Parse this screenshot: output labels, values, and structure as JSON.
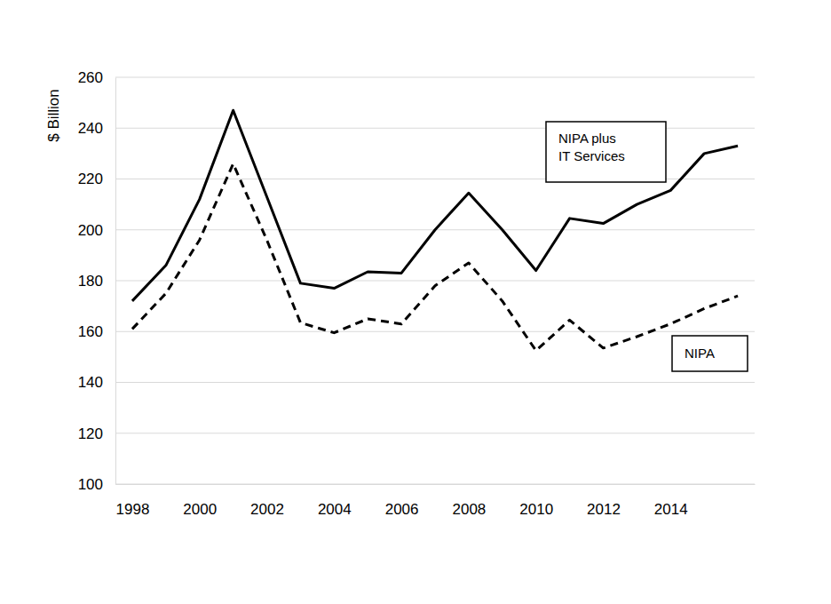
{
  "chart_data": {
    "type": "line",
    "y_label": "$ Billion",
    "x": [
      1998,
      1999,
      2000,
      2001,
      2002,
      2003,
      2004,
      2005,
      2006,
      2007,
      2008,
      2009,
      2010,
      2011,
      2012,
      2013,
      2014,
      2015,
      2016
    ],
    "series": [
      {
        "name": "NIPA plus IT Services",
        "color": "#000000",
        "line_style": "solid",
        "values": [
          172,
          186,
          212,
          247,
          213,
          179,
          177,
          183.5,
          183,
          200,
          214.5,
          200,
          184,
          204.5,
          202.5,
          210,
          215.5,
          230,
          233
        ]
      },
      {
        "name": "NIPA",
        "color": "#000000",
        "line_style": "dashed",
        "values": [
          161,
          175,
          196,
          226,
          196,
          163.5,
          159.5,
          165,
          163,
          178,
          187,
          172,
          152.5,
          164.5,
          153.5,
          158,
          163,
          169,
          174
        ]
      }
    ],
    "xlim": [
      1997.5,
      2016.5
    ],
    "xticks": [
      1998,
      2000,
      2002,
      2004,
      2006,
      2008,
      2010,
      2012,
      2014
    ],
    "ylim": [
      100,
      260
    ],
    "yticks": [
      100,
      120,
      140,
      160,
      180,
      200,
      220,
      240,
      260
    ],
    "grid": true
  }
}
